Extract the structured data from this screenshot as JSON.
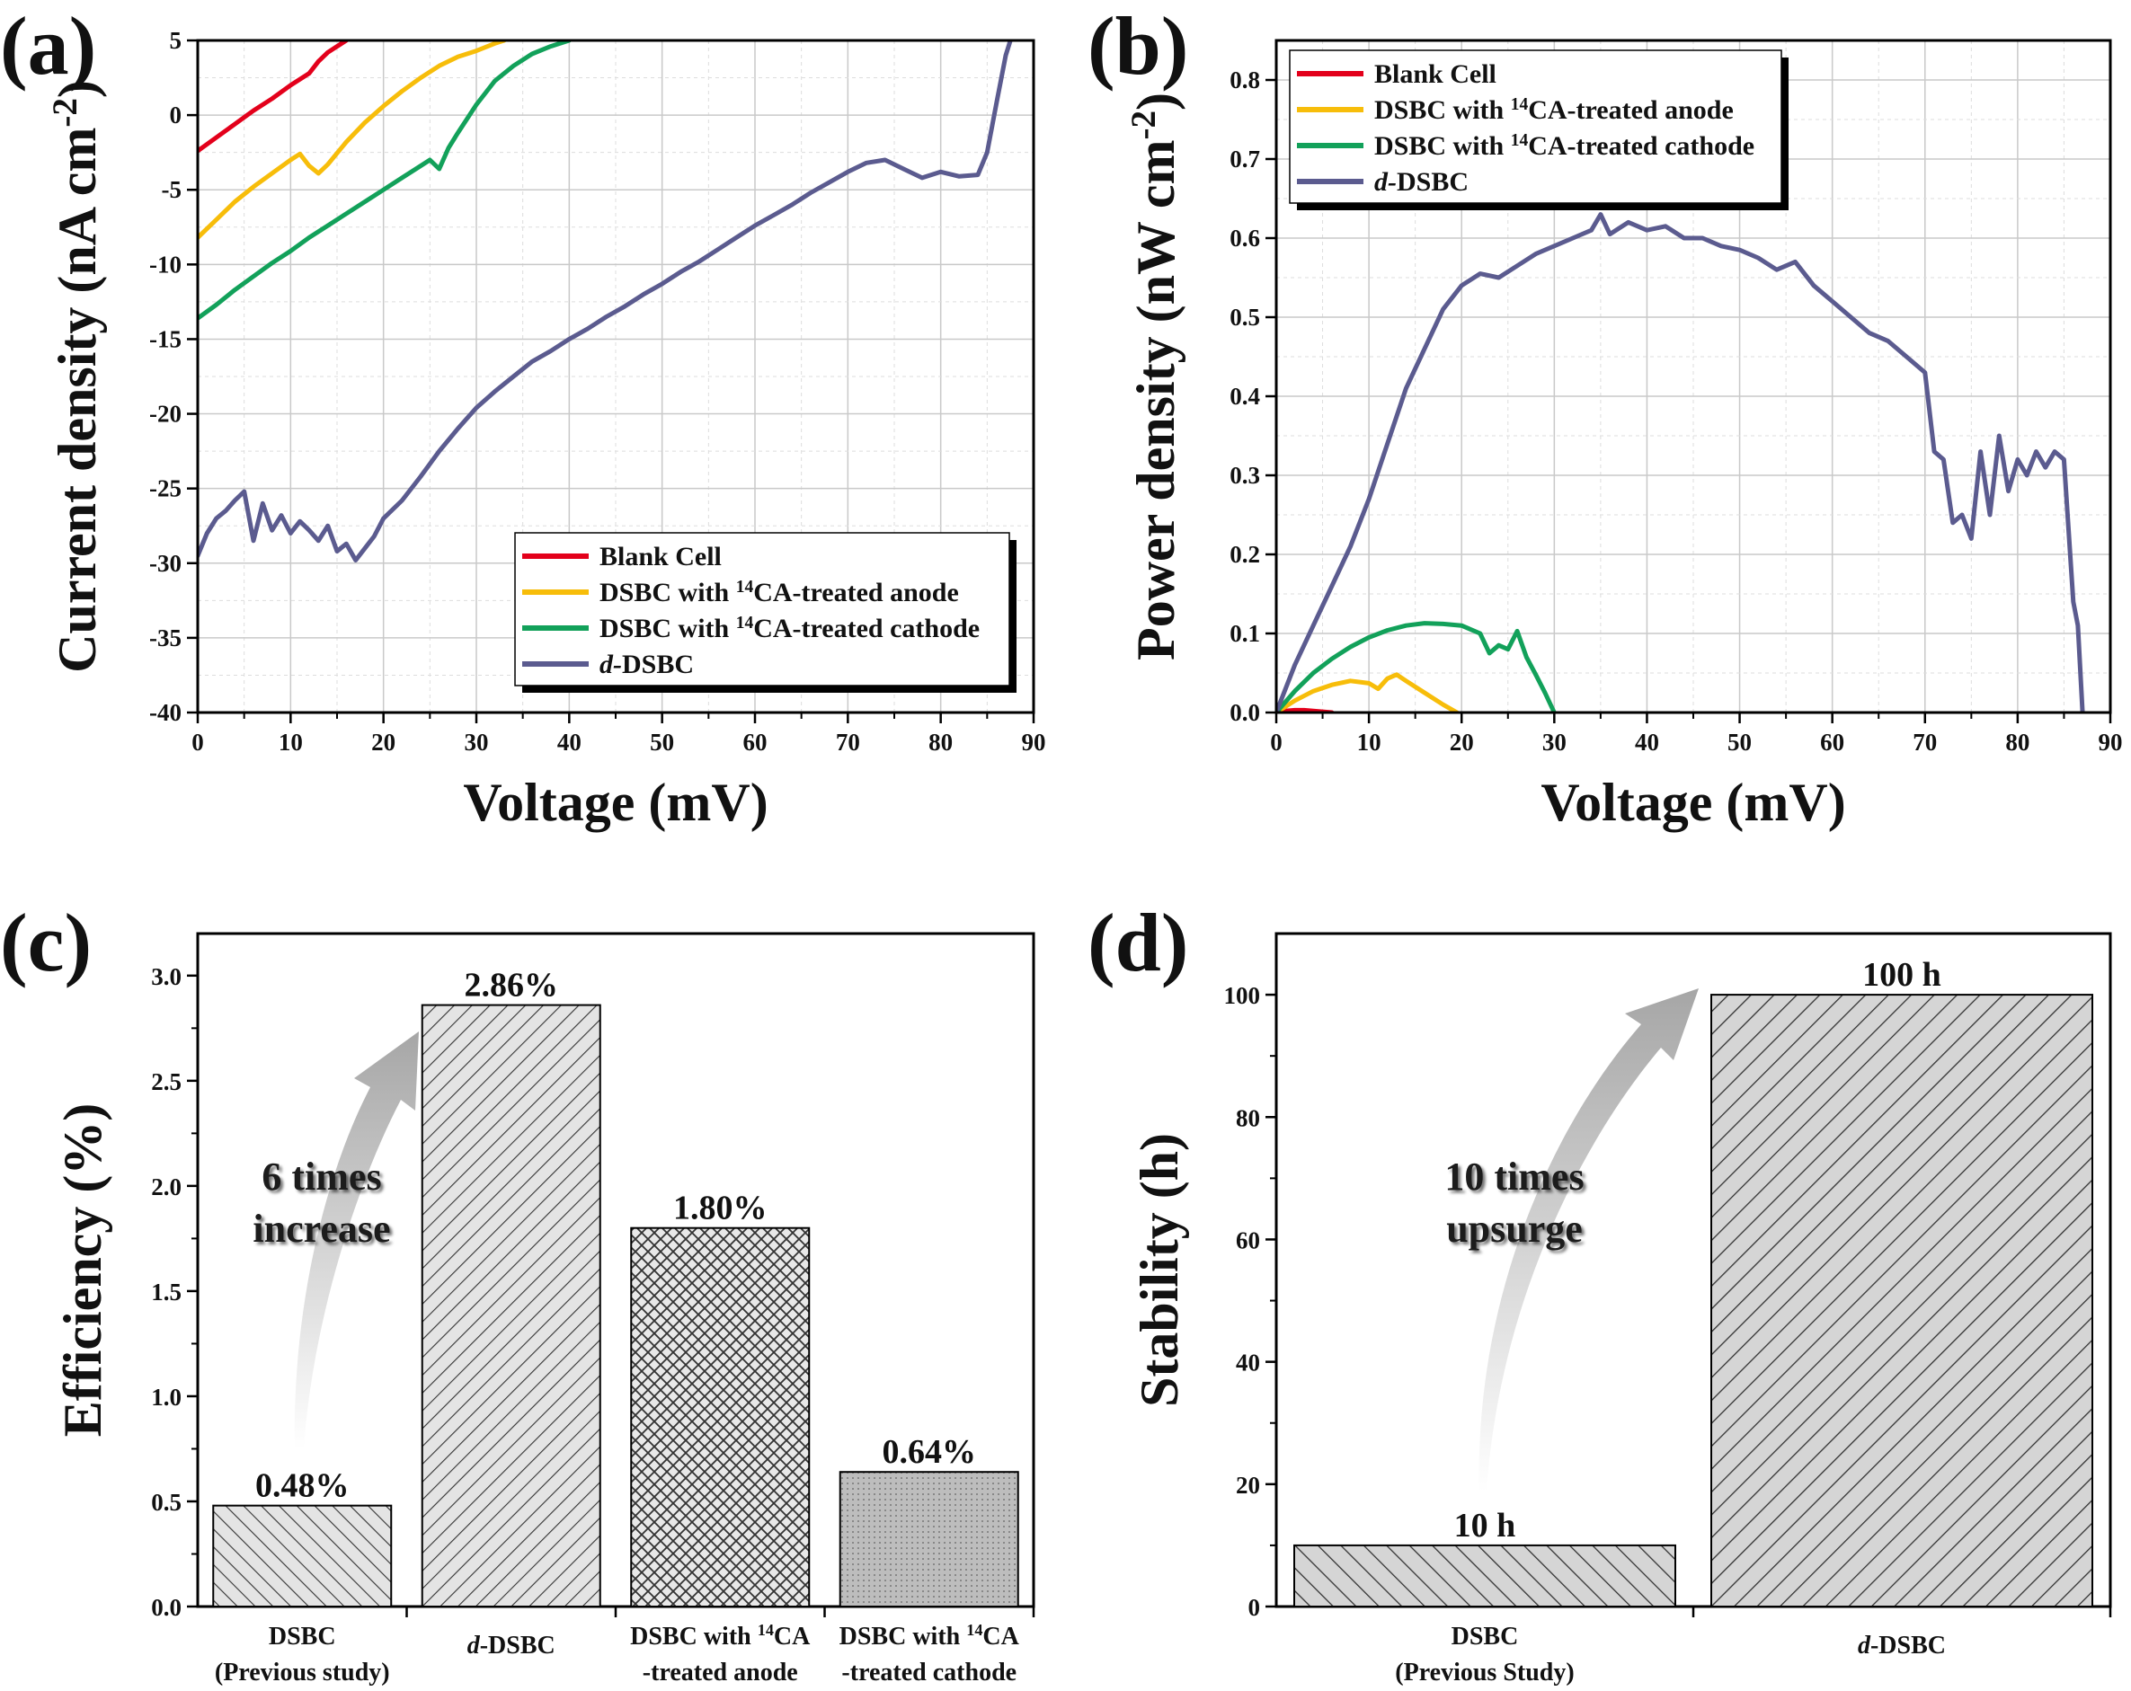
{
  "chart_data": [
    {
      "panel": "(a)",
      "type": "line",
      "xlabel": "Voltage (mV)",
      "ylabel": "Current density (nA cm",
      "ylabel_sup": "-2",
      "ylabel_end": ")",
      "xlim": [
        0,
        90
      ],
      "ylim": [
        -40,
        5
      ],
      "xticks": [
        0,
        10,
        20,
        30,
        40,
        50,
        60,
        70,
        80,
        90
      ],
      "yticks": [
        5,
        0,
        -5,
        -10,
        -15,
        -20,
        -25,
        -30,
        -35,
        -40
      ],
      "grid": true,
      "legend_position": "bottom-right",
      "series": [
        {
          "name": "Blank Cell",
          "legend_prefix": "Blank Cell",
          "legend_sup": "",
          "legend_suffix": "",
          "color": "#e3001b",
          "x": [
            0,
            2,
            4,
            6,
            8,
            10,
            12,
            13,
            14,
            15,
            16
          ],
          "y": [
            -2.4,
            -1.5,
            -0.6,
            0.3,
            1.1,
            2,
            2.8,
            3.6,
            4.2,
            4.6,
            5
          ]
        },
        {
          "name": "DSBC with 14CA-treated anode",
          "legend_prefix": "DSBC with ",
          "legend_sup": "14",
          "legend_suffix": "CA-treated anode",
          "color": "#f7bd0a",
          "x": [
            0,
            2,
            4,
            6,
            8,
            10,
            11,
            12,
            13,
            14,
            16,
            18,
            20,
            22,
            24,
            26,
            28,
            30,
            32,
            33
          ],
          "y": [
            -8.2,
            -7,
            -5.8,
            -4.8,
            -3.9,
            -3,
            -2.6,
            -3.4,
            -3.9,
            -3.3,
            -1.8,
            -0.5,
            0.6,
            1.6,
            2.5,
            3.3,
            3.9,
            4.3,
            4.8,
            5
          ]
        },
        {
          "name": "DSBC with 14CA-treated cathode",
          "legend_prefix": "DSBC with ",
          "legend_sup": "14",
          "legend_suffix": "CA-treated cathode",
          "color": "#12a15a",
          "x": [
            0,
            2,
            4,
            6,
            8,
            10,
            12,
            14,
            16,
            18,
            20,
            22,
            24,
            25,
            26,
            27,
            28,
            30,
            32,
            34,
            36,
            38,
            40
          ],
          "y": [
            -13.6,
            -12.7,
            -11.7,
            -10.8,
            -9.9,
            -9.1,
            -8.2,
            -7.4,
            -6.6,
            -5.8,
            -5,
            -4.2,
            -3.4,
            -3,
            -3.6,
            -2.2,
            -1.2,
            0.7,
            2.3,
            3.3,
            4.1,
            4.6,
            5
          ]
        },
        {
          "name": "d-DSBC",
          "legend_prefix": "d-",
          "legend_sup": "",
          "legend_suffix": "DSBC",
          "color": "#5b5b8f",
          "x": [
            0,
            1,
            2,
            3,
            4,
            5,
            6,
            7,
            8,
            9,
            10,
            11,
            12,
            13,
            14,
            15,
            16,
            17,
            18,
            19,
            20,
            22,
            24,
            26,
            28,
            30,
            32,
            34,
            36,
            38,
            40,
            42,
            44,
            46,
            48,
            50,
            52,
            54,
            56,
            58,
            60,
            62,
            64,
            66,
            68,
            70,
            72,
            74,
            76,
            78,
            80,
            82,
            84,
            85,
            86,
            87,
            87.5
          ],
          "y": [
            -29.5,
            -28,
            -27,
            -26.5,
            -25.8,
            -25.2,
            -28.5,
            -26,
            -27.8,
            -26.8,
            -28,
            -27.2,
            -27.8,
            -28.5,
            -27.5,
            -29.2,
            -28.7,
            -29.8,
            -29,
            -28.2,
            -27,
            -25.8,
            -24.2,
            -22.5,
            -21,
            -19.6,
            -18.5,
            -17.5,
            -16.5,
            -15.8,
            -15,
            -14.3,
            -13.5,
            -12.8,
            -12,
            -11.3,
            -10.5,
            -9.8,
            -9,
            -8.2,
            -7.4,
            -6.7,
            -6,
            -5.2,
            -4.5,
            -3.8,
            -3.2,
            -3,
            -3.6,
            -4.2,
            -3.8,
            -4.1,
            -4,
            -2.5,
            0.8,
            4,
            5
          ]
        }
      ]
    },
    {
      "panel": "(b)",
      "type": "line",
      "xlabel": "Voltage (mV)",
      "ylabel": "Power density (nW cm",
      "ylabel_sup": "-2",
      "ylabel_end": ")",
      "xlim": [
        0,
        90
      ],
      "ylim": [
        0,
        0.85
      ],
      "xticks": [
        0,
        10,
        20,
        30,
        40,
        50,
        60,
        70,
        80,
        90
      ],
      "yticks": [
        "0.0",
        "0.1",
        "0.2",
        "0.3",
        "0.4",
        "0.5",
        "0.6",
        "0.7",
        "0.8"
      ],
      "grid": true,
      "legend_position": "top-left",
      "series": [
        {
          "name": "Blank Cell",
          "legend_prefix": "Blank Cell",
          "legend_sup": "",
          "legend_suffix": "",
          "color": "#e3001b",
          "x": [
            0,
            1,
            2,
            3,
            4,
            5,
            6
          ],
          "y": [
            0,
            0.002,
            0.003,
            0.003,
            0.002,
            0.001,
            0
          ]
        },
        {
          "name": "DSBC with 14CA-treated anode",
          "legend_prefix": "DSBC with ",
          "legend_sup": "14",
          "legend_suffix": "CA-treated anode",
          "color": "#f7bd0a",
          "x": [
            0,
            2,
            4,
            6,
            8,
            10,
            11,
            12,
            13,
            14,
            16,
            18,
            19.5
          ],
          "y": [
            0,
            0.015,
            0.027,
            0.035,
            0.04,
            0.037,
            0.03,
            0.043,
            0.048,
            0.04,
            0.025,
            0.01,
            0
          ]
        },
        {
          "name": "DSBC with 14CA-treated cathode",
          "legend_prefix": "DSBC with ",
          "legend_sup": "14",
          "legend_suffix": "CA-treated cathode",
          "color": "#12a15a",
          "x": [
            0,
            2,
            4,
            6,
            8,
            10,
            12,
            14,
            16,
            18,
            20,
            22,
            23,
            24,
            25,
            26,
            27,
            28,
            29,
            30
          ],
          "y": [
            0,
            0.027,
            0.05,
            0.068,
            0.083,
            0.095,
            0.104,
            0.11,
            0.113,
            0.112,
            0.11,
            0.1,
            0.075,
            0.085,
            0.08,
            0.103,
            0.07,
            0.048,
            0.025,
            0
          ]
        },
        {
          "name": "d-DSBC",
          "legend_prefix": "d-",
          "legend_sup": "",
          "legend_suffix": "DSBC",
          "color": "#5b5b8f",
          "x": [
            0,
            2,
            4,
            6,
            8,
            10,
            12,
            14,
            16,
            18,
            20,
            22,
            24,
            26,
            28,
            30,
            32,
            34,
            35,
            36,
            38,
            40,
            42,
            44,
            46,
            48,
            50,
            52,
            54,
            56,
            58,
            60,
            62,
            64,
            66,
            68,
            70,
            71,
            72,
            73,
            74,
            75,
            76,
            77,
            78,
            79,
            80,
            81,
            82,
            83,
            84,
            85,
            86,
            86.5,
            87
          ],
          "y": [
            0,
            0.06,
            0.11,
            0.16,
            0.21,
            0.27,
            0.34,
            0.41,
            0.46,
            0.51,
            0.54,
            0.555,
            0.55,
            0.565,
            0.58,
            0.59,
            0.6,
            0.61,
            0.63,
            0.605,
            0.62,
            0.61,
            0.615,
            0.6,
            0.6,
            0.59,
            0.585,
            0.575,
            0.56,
            0.57,
            0.54,
            0.52,
            0.5,
            0.48,
            0.47,
            0.45,
            0.43,
            0.33,
            0.32,
            0.24,
            0.25,
            0.22,
            0.33,
            0.25,
            0.35,
            0.28,
            0.32,
            0.3,
            0.33,
            0.31,
            0.33,
            0.32,
            0.14,
            0.11,
            0
          ]
        }
      ]
    },
    {
      "panel": "(c)",
      "type": "bar",
      "ylabel": "Efficiency (%)",
      "ylim": [
        0,
        3.2
      ],
      "yticks": [
        "0.0",
        "0.5",
        "1.0",
        "1.5",
        "2.0",
        "2.5",
        "3.0"
      ],
      "categories": [
        {
          "line1": "DSBC",
          "line2": "(Previous study)"
        },
        {
          "line1": "d-DSBC",
          "line2": ""
        },
        {
          "line1": "DSBC with 14CA",
          "line2": "-treated anode"
        },
        {
          "line1": "DSBC with 14CA",
          "line2": "-treated cathode"
        }
      ],
      "values": [
        0.48,
        2.86,
        1.8,
        0.64
      ],
      "value_labels": [
        "0.48%",
        "2.86%",
        "1.80%",
        "0.64%"
      ],
      "annotation": {
        "line1": "6 times",
        "line2": "increase"
      }
    },
    {
      "panel": "(d)",
      "type": "bar",
      "ylabel": "Stability (h)",
      "ylim": [
        0,
        110
      ],
      "yticks": [
        "0",
        "20",
        "40",
        "60",
        "80",
        "100"
      ],
      "categories": [
        {
          "line1": "DSBC",
          "line2": "(Previous Study)"
        },
        {
          "line1": "d-DSBC",
          "line2": ""
        }
      ],
      "values": [
        10,
        100
      ],
      "value_labels": [
        "10 h",
        "100 h"
      ],
      "annotation": {
        "line1": "10 times",
        "line2": "upsurge"
      }
    }
  ]
}
